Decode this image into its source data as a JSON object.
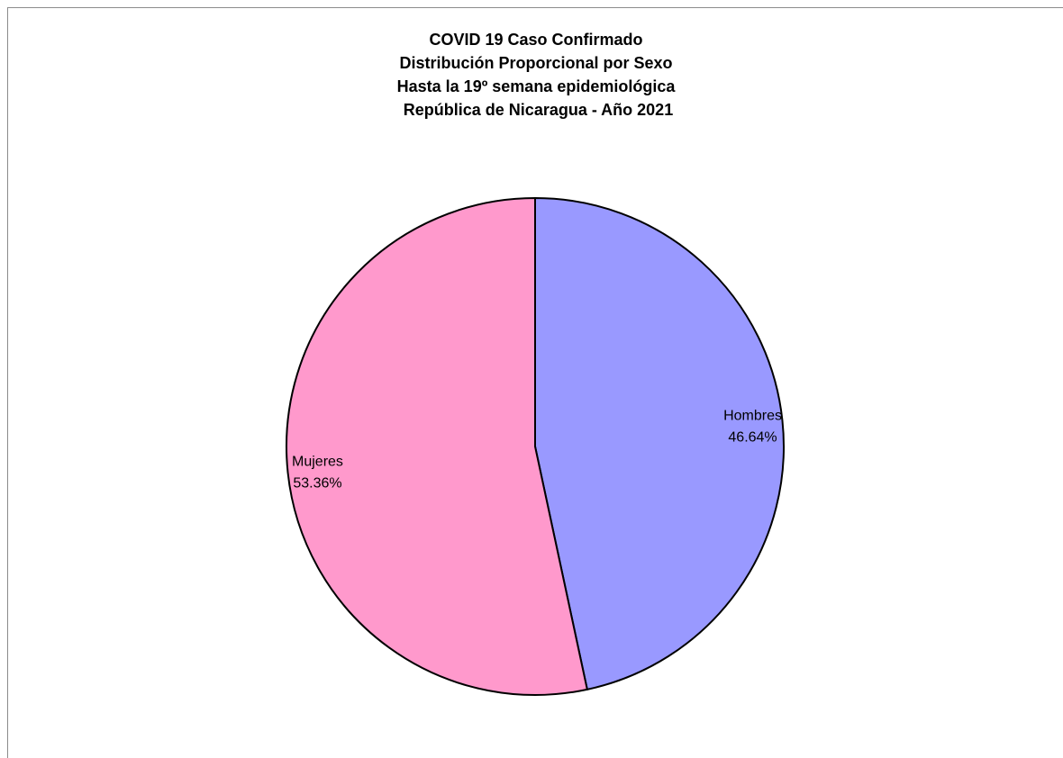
{
  "chart_data": {
    "type": "pie",
    "title_lines": [
      "COVID 19 Caso Confirmado",
      "Distribución Proporcional por Sexo",
      "Hasta la 19º semana epidemiológica",
      " República de Nicaragua - Año 2021"
    ],
    "slices": [
      {
        "name": "Hombres",
        "value": 46.64,
        "label_percent": "46.64%",
        "color": "#9999ff"
      },
      {
        "name": "Mujeres",
        "value": 53.36,
        "label_percent": "53.36%",
        "color": "#ff99cc"
      }
    ],
    "start_angle": "12 o'clock",
    "direction": "clockwise",
    "outline_color": "#000000",
    "legend": "none"
  }
}
